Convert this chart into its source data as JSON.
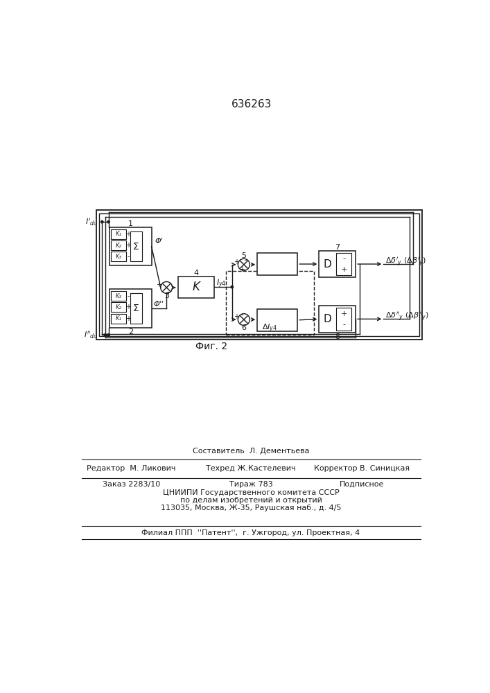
{
  "title_number": "636263",
  "fig_label": "Фиг. 2",
  "background_color": "#ffffff",
  "line_color": "#1a1a1a",
  "footer_line1": "Составитель  Л. Дементьева",
  "footer_line2a": "Редактор  М. Ликович",
  "footer_line2b": "Техред Ж.Кастелевич",
  "footer_line2c": "Корректор В. Синицкая",
  "footer_line3a": "Заказ 2283/10",
  "footer_line3b": "Тираж 783",
  "footer_line3c": "Подписное",
  "footer_line4": "ЦНИИПИ Государственного комитета СССР",
  "footer_line5": "по делам изобретений и открытий",
  "footer_line6": "113035, Москва, Ж-35, Раушская наб., д. 4/5",
  "footer_line7": "Филиал ППП  ''Патент'',  г. Ужгород, ул. Проектная, 4"
}
